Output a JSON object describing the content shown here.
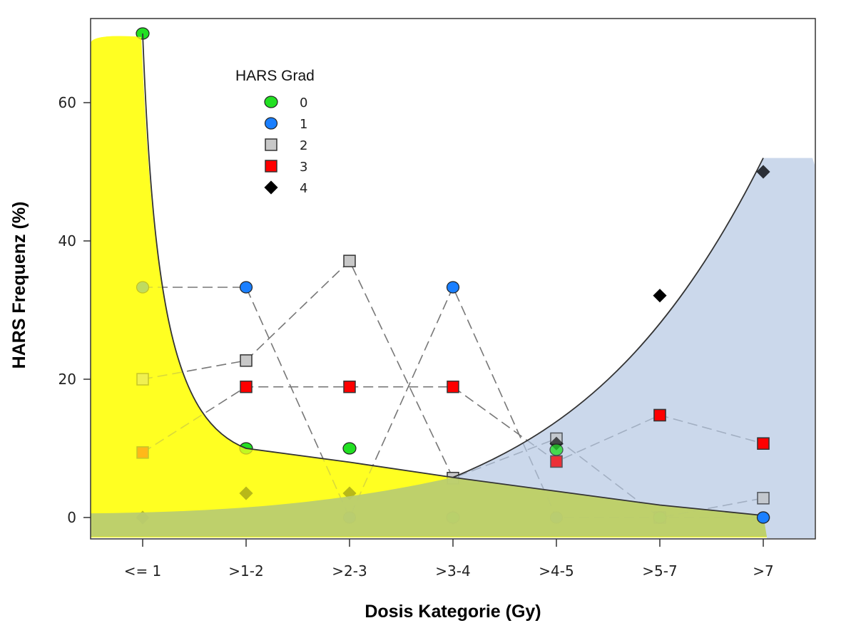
{
  "chart_data": {
    "type": "scatter",
    "title": "",
    "xlabel": "Dosis Kategorie (Gy)",
    "ylabel": "HARS Frequenz (%)",
    "categories": [
      "<= 1",
      ">1-2",
      ">2-3",
      ">3-4",
      ">4-5",
      ">5-7",
      ">7"
    ],
    "yticks": [
      0,
      20,
      40,
      60
    ],
    "ylim": [
      -3,
      73
    ],
    "grid": false,
    "legend": {
      "title": "HARS Grad",
      "placement": "top-left",
      "entries": [
        "0",
        "1",
        "2",
        "3",
        "4"
      ]
    },
    "series": [
      {
        "name": "0",
        "marker": "circle",
        "color": "#22e022",
        "lines": false,
        "values": [
          70,
          10,
          10,
          0,
          9.8,
          0,
          0
        ]
      },
      {
        "name": "1",
        "marker": "circle",
        "color": "#1a7fff",
        "lines": true,
        "values": [
          33.3,
          33.3,
          0,
          33.3,
          0,
          0,
          0
        ]
      },
      {
        "name": "2",
        "marker": "square",
        "color": "#c8c8c8",
        "lines": true,
        "values": [
          20,
          22.7,
          37.1,
          5.7,
          11.4,
          0,
          2.8
        ]
      },
      {
        "name": "3",
        "marker": "square",
        "color": "#ff0000",
        "lines": true,
        "values": [
          9.4,
          18.9,
          18.9,
          18.9,
          8.1,
          14.8,
          10.7
        ]
      },
      {
        "name": "4",
        "marker": "diamond",
        "color": "#000000",
        "lines": false,
        "values": [
          0,
          3.5,
          3.5,
          0,
          10.7,
          32.1,
          50
        ]
      }
    ],
    "regions": [
      {
        "name": "low-dose-region",
        "color": "#ffff22",
        "boundary": [
          70,
          10,
          8,
          5.8,
          3.8,
          1.8,
          0.3
        ]
      },
      {
        "name": "high-dose-region",
        "color": "#b5c8e3",
        "boundary": [
          null,
          null,
          null,
          5.8,
          12.5,
          25,
          52
        ]
      }
    ]
  }
}
